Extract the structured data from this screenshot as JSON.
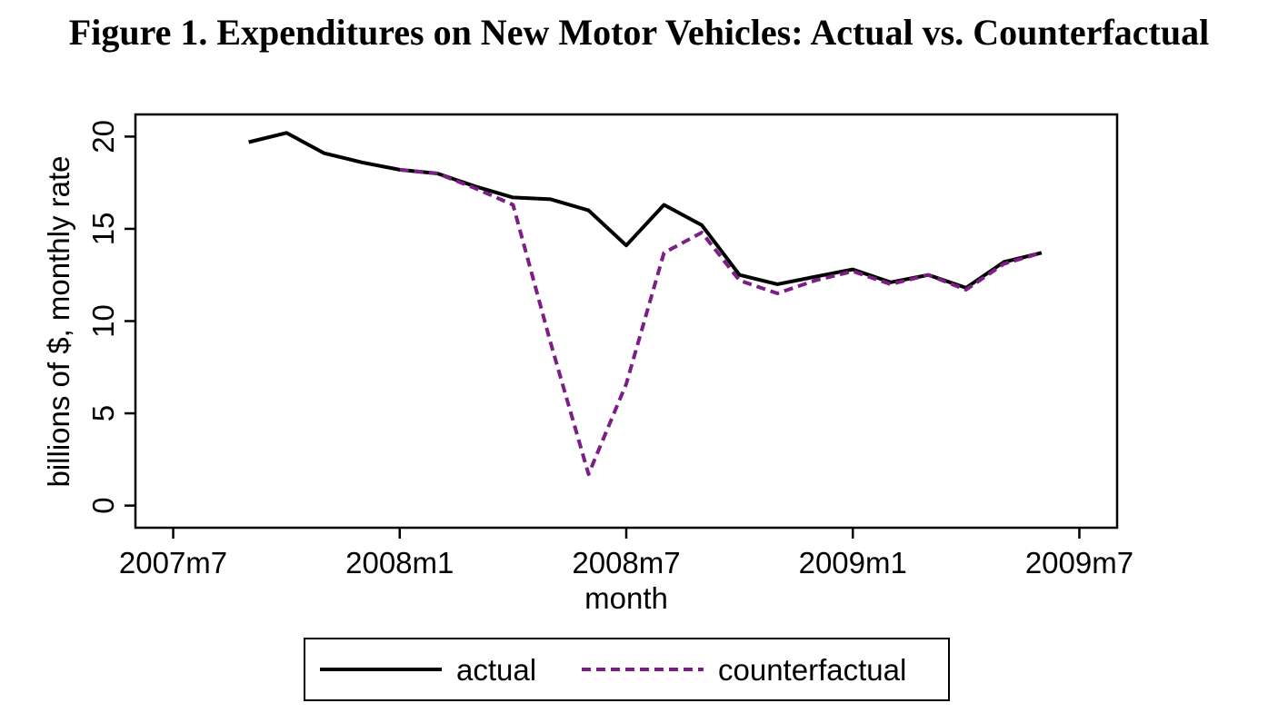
{
  "title": "Figure 1. Expenditures on New Motor Vehicles: Actual vs. Counterfactual",
  "colors": {
    "actual": "#000000",
    "counterfactual": "#7b1f86",
    "frame": "#000000",
    "background": "#ffffff"
  },
  "chart_data": {
    "type": "line",
    "xlabel": "month",
    "ylabel": "billions of $, monthly rate",
    "x_unit": "month",
    "x_ticks": [
      {
        "value": "2007-07",
        "label": "2007m7"
      },
      {
        "value": "2008-01",
        "label": "2008m1"
      },
      {
        "value": "2008-07",
        "label": "2008m7"
      },
      {
        "value": "2009-01",
        "label": "2009m1"
      },
      {
        "value": "2009-07",
        "label": "2009m7"
      }
    ],
    "y_ticks": [
      0,
      5,
      10,
      15,
      20
    ],
    "xlim": [
      "2007-06",
      "2009-08"
    ],
    "ylim": [
      -1.2,
      21.2
    ],
    "grid": false,
    "legend": "bottom",
    "series": [
      {
        "name": "actual",
        "style": "solid",
        "x": [
          "2007-09",
          "2007-10",
          "2007-11",
          "2007-12",
          "2008-01",
          "2008-02",
          "2008-03",
          "2008-04",
          "2008-05",
          "2008-06",
          "2008-07",
          "2008-08",
          "2008-09",
          "2008-10",
          "2008-11",
          "2008-12",
          "2009-01",
          "2009-02",
          "2009-03",
          "2009-04",
          "2009-05",
          "2009-06"
        ],
        "values": [
          19.7,
          20.2,
          19.1,
          18.6,
          18.2,
          18.0,
          17.3,
          16.7,
          16.6,
          16.0,
          14.1,
          16.3,
          15.2,
          12.5,
          12.0,
          12.4,
          12.8,
          12.1,
          12.5,
          11.8,
          13.2,
          13.7
        ]
      },
      {
        "name": "counterfactual",
        "style": "dashed",
        "x": [
          "2008-01",
          "2008-02",
          "2008-03",
          "2008-04",
          "2008-05",
          "2008-06",
          "2008-07",
          "2008-08",
          "2008-09",
          "2008-10",
          "2008-11",
          "2008-12",
          "2009-01",
          "2009-02",
          "2009-03",
          "2009-04",
          "2009-05",
          "2009-06"
        ],
        "values": [
          18.2,
          18.0,
          17.2,
          16.3,
          8.8,
          1.7,
          6.6,
          13.7,
          14.8,
          12.2,
          11.5,
          12.2,
          12.7,
          12.0,
          12.5,
          11.7,
          13.1,
          13.7
        ]
      }
    ]
  }
}
